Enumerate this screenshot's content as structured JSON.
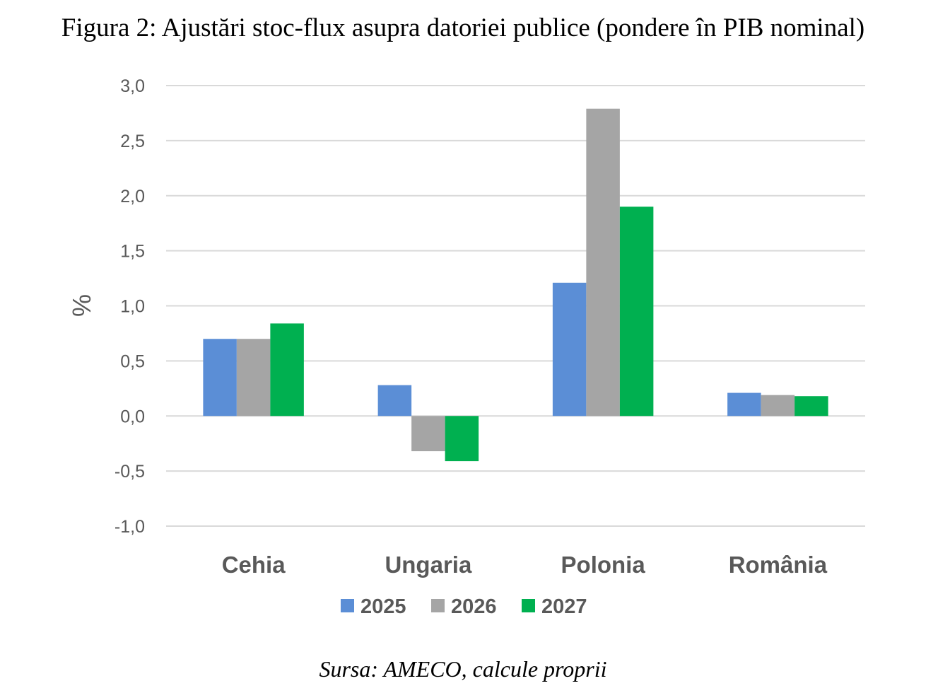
{
  "chart_data": {
    "type": "bar",
    "title": "Figura 2: Ajustări stoc-flux asupra datoriei publice (pondere în PIB nominal)",
    "source": "Sursa: AMECO, calcule proprii",
    "xlabel": "",
    "ylabel": "%",
    "ylim": [
      -1.0,
      3.0
    ],
    "yticks": [
      "3,0",
      "2,5",
      "2,0",
      "1,5",
      "1,0",
      "0,5",
      "0,0",
      "-0,5",
      "-1,0"
    ],
    "ytick_values": [
      3.0,
      2.5,
      2.0,
      1.5,
      1.0,
      0.5,
      0.0,
      -0.5,
      -1.0
    ],
    "grid": true,
    "legend_position": "bottom",
    "categories": [
      "Cehia",
      "Ungaria",
      "Polonia",
      "România"
    ],
    "series": [
      {
        "name": "2025",
        "color": "#5b8ed6",
        "values": [
          0.7,
          0.28,
          1.21,
          0.21
        ]
      },
      {
        "name": "2026",
        "color": "#a5a5a5",
        "values": [
          0.7,
          -0.32,
          2.79,
          0.19
        ]
      },
      {
        "name": "2027",
        "color": "#00b050",
        "values": [
          0.84,
          -0.41,
          1.9,
          0.18
        ]
      }
    ]
  }
}
